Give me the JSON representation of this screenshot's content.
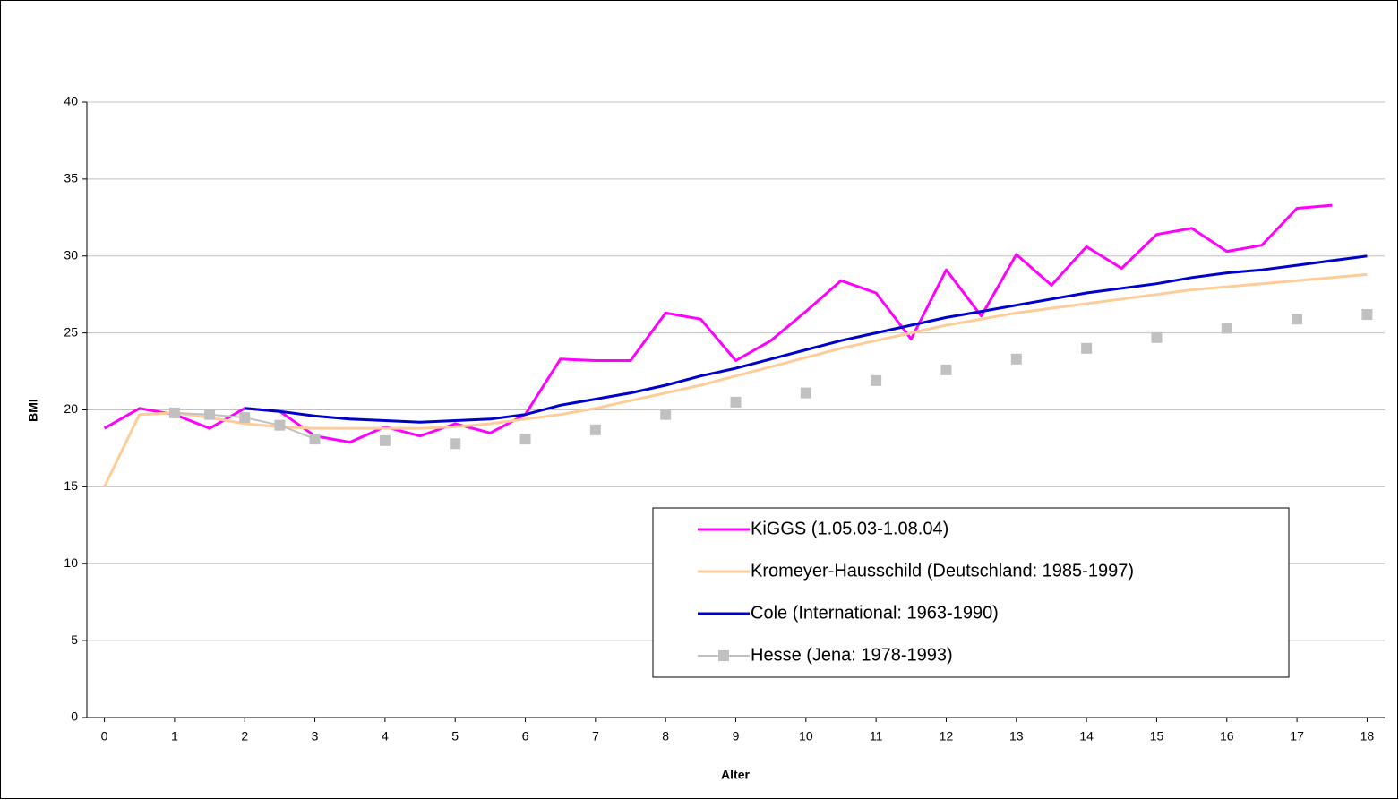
{
  "chart_data": {
    "type": "line",
    "xlabel": "Alter",
    "ylabel": "BMI",
    "x": [
      0,
      0.5,
      1,
      1.5,
      2,
      2.5,
      3,
      3.5,
      4,
      4.5,
      5,
      5.5,
      6,
      6.5,
      7,
      7.5,
      8,
      8.5,
      9,
      9.5,
      10,
      10.5,
      11,
      11.5,
      12,
      12.5,
      13,
      13.5,
      14,
      14.5,
      15,
      15.5,
      16,
      16.5,
      17,
      17.5,
      18
    ],
    "xlim": [
      -0.25,
      18.25
    ],
    "xticks": [
      0,
      1,
      2,
      3,
      4,
      5,
      6,
      7,
      8,
      9,
      10,
      11,
      12,
      13,
      14,
      15,
      16,
      17,
      18
    ],
    "ylim": [
      0,
      40
    ],
    "yticks": [
      0,
      5,
      10,
      15,
      20,
      25,
      30,
      35,
      40
    ],
    "grid": true,
    "legend": "lower right",
    "series": [
      {
        "name": "KiGGS (1.05.03-1.08.04)",
        "color": "#ff00ff",
        "width": 3,
        "values": [
          18.8,
          20.1,
          19.7,
          18.8,
          20.1,
          19.9,
          18.3,
          17.9,
          18.9,
          18.3,
          19.1,
          18.5,
          19.7,
          23.3,
          23.2,
          23.2,
          26.3,
          25.9,
          23.2,
          24.5,
          26.4,
          28.4,
          27.6,
          24.6,
          29.1,
          26.1,
          30.1,
          28.1,
          30.6,
          29.2,
          31.4,
          31.8,
          30.3,
          30.7,
          33.1,
          33.3,
          null
        ]
      },
      {
        "name": "Kromeyer-Hausschild (Deutschland: 1985-1997)",
        "color": "#ffcc99",
        "width": 3,
        "values": [
          15.0,
          19.7,
          19.8,
          19.5,
          19.1,
          18.9,
          18.8,
          18.8,
          18.8,
          18.8,
          18.9,
          19.1,
          19.4,
          19.7,
          20.1,
          20.6,
          21.1,
          21.6,
          22.2,
          22.8,
          23.4,
          24.0,
          24.5,
          25.0,
          25.5,
          25.9,
          26.3,
          26.6,
          26.9,
          27.2,
          27.5,
          27.8,
          28.0,
          28.2,
          28.4,
          28.6,
          28.8
        ]
      },
      {
        "name": "Cole (International: 1963-1990)",
        "color": "#0000cc",
        "width": 3,
        "values": [
          null,
          null,
          null,
          null,
          20.1,
          19.9,
          19.6,
          19.4,
          19.3,
          19.2,
          19.3,
          19.4,
          19.7,
          20.3,
          20.7,
          21.1,
          21.6,
          22.2,
          22.7,
          23.3,
          23.9,
          24.5,
          25.0,
          25.5,
          26.0,
          26.4,
          26.8,
          27.2,
          27.6,
          27.9,
          28.2,
          28.6,
          28.9,
          29.1,
          29.4,
          29.7,
          30.0
        ]
      },
      {
        "name": "Hesse (Jena: 1978-1993)",
        "color": "#c0c0c0",
        "width": 2,
        "marker": "square",
        "values": [
          null,
          null,
          19.8,
          19.7,
          19.5,
          19.0,
          18.1,
          null,
          18.0,
          null,
          17.8,
          null,
          18.1,
          null,
          18.7,
          null,
          19.7,
          null,
          20.5,
          null,
          21.1,
          null,
          21.9,
          null,
          22.6,
          null,
          23.3,
          null,
          24.0,
          null,
          24.7,
          null,
          25.3,
          null,
          25.9,
          null,
          26.2
        ]
      }
    ]
  }
}
